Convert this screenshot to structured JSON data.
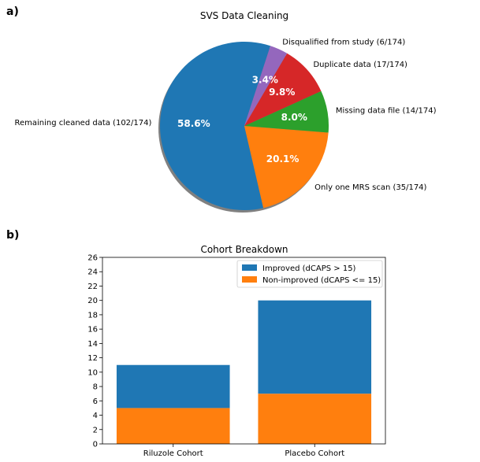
{
  "colors": {
    "blue": "#1f77b4",
    "orange": "#ff7f0e",
    "green": "#2ca02c",
    "red": "#d62728",
    "purple": "#9467bd",
    "shadow": "#808080",
    "axis": "#000000"
  },
  "panel_labels": {
    "a": "a)",
    "b": "b)"
  },
  "chart_data": [
    {
      "type": "pie",
      "title": "SVS Data Cleaning",
      "shadow": true,
      "start_angle_deg": 72,
      "slices": [
        {
          "label": "Remaining cleaned data (102/174)",
          "value": 102,
          "pct_label": "58.6%",
          "color": "#1f77b4"
        },
        {
          "label": "Only one MRS scan (35/174)",
          "value": 35,
          "pct_label": "20.1%",
          "color": "#ff7f0e"
        },
        {
          "label": "Missing data file (14/174)",
          "value": 14,
          "pct_label": "8.0%",
          "color": "#2ca02c"
        },
        {
          "label": "Duplicate data (17/174)",
          "value": 17,
          "pct_label": "9.8%",
          "color": "#d62728"
        },
        {
          "label": "Disqualified from study (6/174)",
          "value": 6,
          "pct_label": "3.4%",
          "color": "#9467bd"
        }
      ]
    },
    {
      "type": "bar",
      "stacked": true,
      "title": "Cohort Breakdown",
      "categories": [
        "Riluzole Cohort",
        "Placebo Cohort"
      ],
      "series": [
        {
          "name": "Non-improved (dCAPS <= 15)",
          "values": [
            5,
            7
          ],
          "color": "#ff7f0e"
        },
        {
          "name": "Improved (dCAPS > 15)",
          "values": [
            6,
            13
          ],
          "color": "#1f77b4"
        }
      ],
      "ylim": [
        0,
        26
      ],
      "yticks": [
        "0",
        "2",
        "4",
        "6",
        "8",
        "10",
        "12",
        "14",
        "16",
        "18",
        "20",
        "22",
        "24",
        "26"
      ],
      "legend": {
        "placement": "top-right",
        "entries": [
          {
            "name": "Improved (dCAPS > 15)",
            "color": "#1f77b4"
          },
          {
            "name": "Non-improved (dCAPS <= 15)",
            "color": "#ff7f0e"
          }
        ]
      }
    }
  ]
}
